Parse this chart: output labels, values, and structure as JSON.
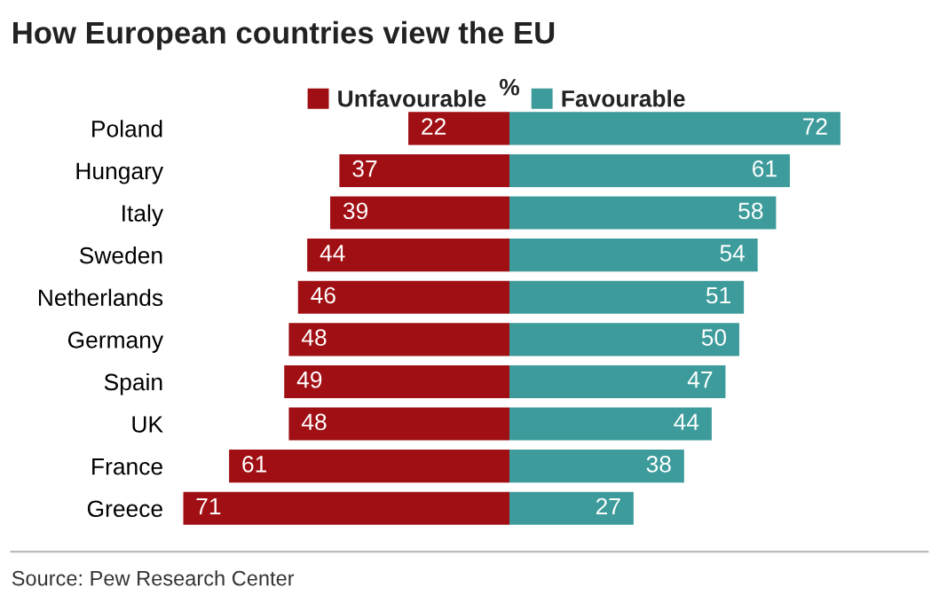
{
  "chart_data": [
    {
      "type": "bar",
      "orientation": "horizontal",
      "title": "How European countries view the EU",
      "xlim": [
        71,
        0
      ],
      "data_labels": true,
      "legend": "top",
      "categories": [
        "Poland",
        "Hungary",
        "Italy",
        "Sweden",
        "Netherlands",
        "Germany",
        "Spain",
        "UK",
        "France",
        "Greece"
      ],
      "series": [
        {
          "name": "Unfavourable",
          "color": "#a00f14",
          "values": [
            22,
            37,
            39,
            44,
            46,
            48,
            49,
            48,
            61,
            71
          ]
        }
      ],
      "annotations": [
        "%",
        "Source: Pew Research Center"
      ]
    },
    {
      "type": "bar",
      "orientation": "horizontal",
      "xlim": [
        0,
        72
      ],
      "data_labels": true,
      "legend": "top",
      "categories": [
        null,
        null,
        null,
        null,
        null,
        null,
        null,
        null,
        null,
        null
      ],
      "series": [
        {
          "name": "Favourable",
          "color": "#3d9b9b",
          "values": [
            72,
            61,
            58,
            54,
            51,
            50,
            47,
            44,
            38,
            27
          ]
        }
      ]
    }
  ]
}
